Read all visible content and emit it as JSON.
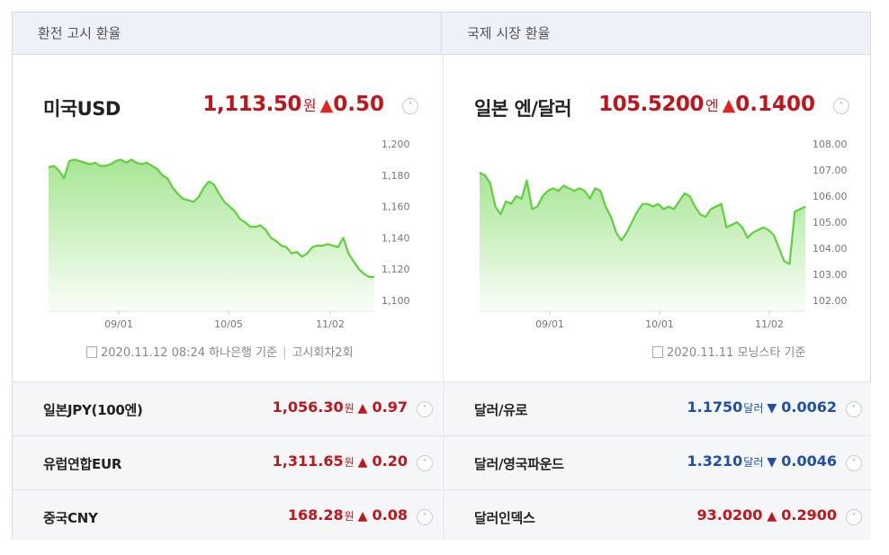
{
  "tabs": [
    "환전 고시 환율",
    "국제 시장 환율"
  ],
  "left_panel": {
    "name": "미국USD",
    "value": "1,113.50",
    "unit": "원",
    "change": "0.50",
    "direction": "up",
    "source": "2020.11.12 08:24 하나은행 기준",
    "source_extra": "고시회차2회",
    "chart_data": {
      "type": "area",
      "x_ticks": [
        "09/01",
        "10/05",
        "11/02"
      ],
      "y_ticks": [
        "1,200",
        "1,180",
        "1,160",
        "1,140",
        "1,120",
        "1,100"
      ],
      "ylim": [
        1100,
        1200
      ],
      "color": "#5fd13c",
      "values": [
        1185,
        1186,
        1183,
        1178,
        1189,
        1190,
        1189,
        1188,
        1187,
        1188,
        1186,
        1186,
        1187,
        1189,
        1190,
        1188,
        1190,
        1188,
        1187,
        1188,
        1186,
        1184,
        1180,
        1178,
        1172,
        1168,
        1165,
        1164,
        1163,
        1166,
        1172,
        1176,
        1174,
        1168,
        1163,
        1160,
        1157,
        1152,
        1150,
        1147,
        1147,
        1148,
        1145,
        1140,
        1138,
        1135,
        1134,
        1130,
        1131,
        1128,
        1130,
        1134,
        1135,
        1135,
        1136,
        1135,
        1134,
        1140,
        1130,
        1125,
        1120,
        1117,
        1115,
        1115
      ]
    }
  },
  "right_panel": {
    "name": "일본 엔/달러",
    "value": "105.5200",
    "unit": "엔",
    "change": "0.1400",
    "direction": "up",
    "source": "2020.11.11 모닝스타 기준",
    "chart_data": {
      "type": "area",
      "x_ticks": [
        "09/01",
        "10/01",
        "11/02"
      ],
      "y_ticks": [
        "108.00",
        "107.00",
        "106.00",
        "105.00",
        "104.00",
        "103.00",
        "102.00"
      ],
      "ylim": [
        101.5,
        108.3
      ],
      "color": "#5fd13c",
      "values": [
        106.9,
        106.8,
        106.5,
        105.6,
        105.3,
        105.8,
        105.7,
        106.0,
        105.9,
        106.6,
        105.5,
        105.6,
        106.0,
        106.2,
        106.3,
        106.2,
        106.4,
        106.3,
        106.2,
        106.3,
        106.2,
        105.9,
        106.3,
        106.2,
        105.6,
        105.2,
        104.6,
        104.3,
        104.6,
        105.0,
        105.4,
        105.7,
        105.7,
        105.6,
        105.7,
        105.5,
        105.6,
        105.5,
        105.8,
        106.1,
        106.0,
        105.6,
        105.3,
        105.2,
        105.5,
        105.6,
        105.7,
        104.8,
        104.9,
        105.0,
        104.8,
        104.4,
        104.6,
        104.7,
        104.8,
        104.7,
        104.5,
        104.0,
        103.5,
        103.4,
        105.4,
        105.5,
        105.6
      ]
    }
  },
  "rows_left": [
    {
      "name": "일본JPY(100엔)",
      "value": "1,056.30",
      "unit": "원",
      "change": "0.97",
      "direction": "up"
    },
    {
      "name": "유럽연합EUR",
      "value": "1,311.65",
      "unit": "원",
      "change": "0.20",
      "direction": "up"
    },
    {
      "name": "중국CNY",
      "value": "168.28",
      "unit": "원",
      "change": "0.08",
      "direction": "up"
    }
  ],
  "rows_right": [
    {
      "name": "달러/유로",
      "value": "1.1750",
      "unit": "달러",
      "change": "0.0062",
      "direction": "down"
    },
    {
      "name": "달러/영국파운드",
      "value": "1.3210",
      "unit": "달러",
      "change": "0.0046",
      "direction": "down"
    },
    {
      "name": "달러인덱스",
      "value": "93.0200",
      "unit": "",
      "change": "0.2900",
      "direction": "up"
    }
  ],
  "glyphs": {
    "up": "▲",
    "down": "▼",
    "toggle_up": "˄",
    "toggle_down": "˅"
  }
}
